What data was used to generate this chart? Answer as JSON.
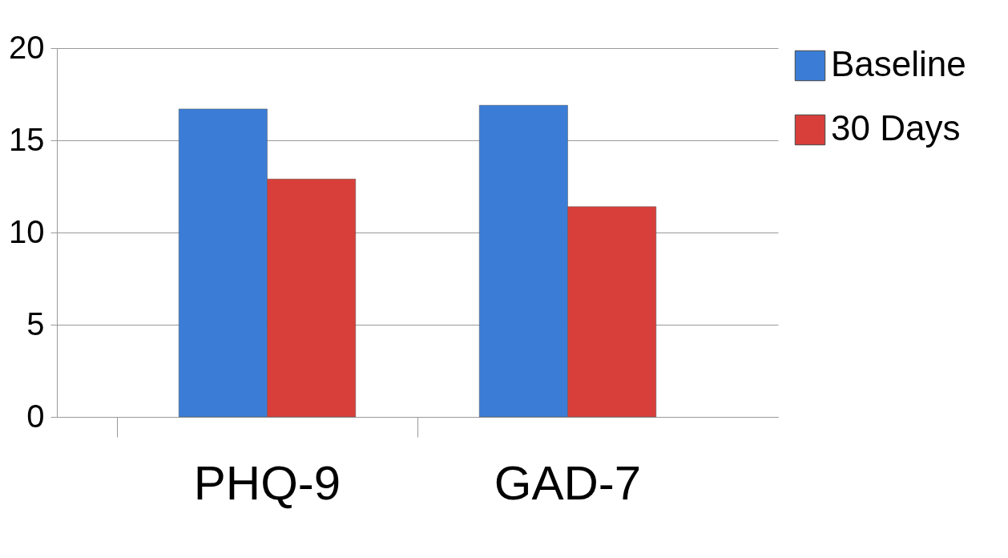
{
  "chart_data": {
    "type": "bar",
    "categories": [
      "PHQ-9",
      "GAD-7"
    ],
    "series": [
      {
        "name": "Baseline",
        "color": "#3b7dd6",
        "values": [
          16.7,
          16.9
        ]
      },
      {
        "name": "30 Days",
        "color": "#d83f3a",
        "values": [
          12.9,
          11.4
        ]
      }
    ],
    "ylim": [
      0,
      20
    ],
    "yticks": [
      0,
      5,
      10,
      15,
      20
    ],
    "grid": "y",
    "legend": "right"
  }
}
